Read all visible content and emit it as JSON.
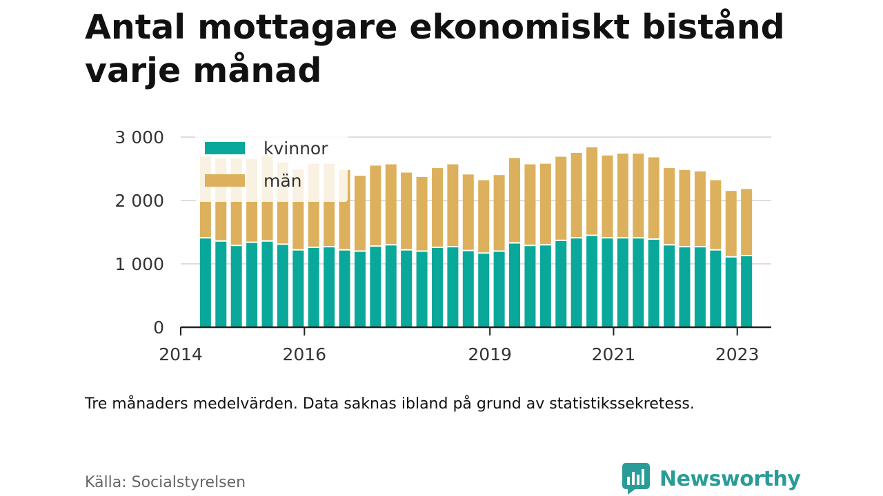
{
  "title": "Antal mottagare ekonomiskt bistånd varje månad",
  "note": "Tre månaders medelvärden. Data saknas ibland på grund av statistikssekretess.",
  "source": "Källa: Socialstyrelsen",
  "brand": "Newsworthy",
  "colors": {
    "kvinnor": "#0aa89a",
    "man": "#dcb05c",
    "grid": "#dddddd",
    "axis": "#222222",
    "brand": "#2a9c97"
  },
  "chart_data": {
    "type": "bar",
    "stacked": true,
    "ylim": [
      0,
      3000
    ],
    "yticks": [
      0,
      1000,
      2000,
      3000
    ],
    "ytick_labels": [
      "0",
      "1 000",
      "2 000",
      "3 000"
    ],
    "xlim": [
      2014.0,
      2023.55
    ],
    "xticks": [
      2014,
      2016,
      2019,
      2021,
      2023
    ],
    "xtick_labels": [
      "2014",
      "2016",
      "2019",
      "2021",
      "2023"
    ],
    "legend_position": "top-left",
    "grid": true,
    "x": [
      2014.4,
      2014.65,
      2014.9,
      2015.15,
      2015.4,
      2015.65,
      2015.9,
      2016.15,
      2016.4,
      2016.65,
      2016.9,
      2017.15,
      2017.4,
      2017.65,
      2017.9,
      2018.15,
      2018.4,
      2018.65,
      2018.9,
      2019.15,
      2019.4,
      2019.65,
      2019.9,
      2020.15,
      2020.4,
      2020.65,
      2020.9,
      2021.15,
      2021.4,
      2021.65,
      2021.9,
      2022.15,
      2022.4,
      2022.65,
      2022.9,
      2023.15
    ],
    "series": [
      {
        "name": "kvinnor",
        "values": [
          1400,
          1350,
          1280,
          1330,
          1350,
          1300,
          1210,
          1250,
          1260,
          1210,
          1190,
          1270,
          1290,
          1210,
          1190,
          1250,
          1260,
          1200,
          1160,
          1190,
          1320,
          1280,
          1290,
          1360,
          1400,
          1440,
          1400,
          1400,
          1400,
          1380,
          1290,
          1260,
          1260,
          1210,
          1100,
          1120
        ]
      },
      {
        "name": "män",
        "values": [
          1290,
          1310,
          1380,
          1320,
          1350,
          1300,
          1280,
          1330,
          1320,
          1270,
          1200,
          1280,
          1280,
          1230,
          1180,
          1260,
          1310,
          1210,
          1160,
          1210,
          1350,
          1290,
          1290,
          1330,
          1350,
          1400,
          1310,
          1340,
          1340,
          1300,
          1220,
          1220,
          1200,
          1110,
          1050,
          1060
        ]
      }
    ]
  }
}
